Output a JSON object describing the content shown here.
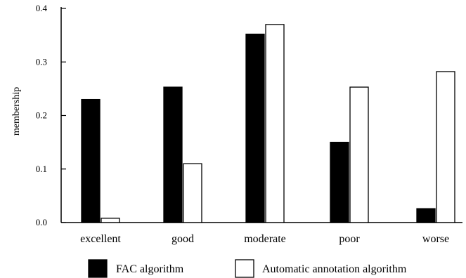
{
  "chart_data": {
    "type": "bar",
    "title": "",
    "xlabel": "",
    "ylabel": "membership",
    "ylim": [
      0,
      0.4
    ],
    "yticks": [
      "0.0",
      "0.1",
      "0.2",
      "0.3",
      "0.4"
    ],
    "categories": [
      "excellent",
      "good",
      "moderate",
      "poor",
      "worse"
    ],
    "series": [
      {
        "name": "FAC algorithm",
        "color": "#000000",
        "values": [
          0.23,
          0.253,
          0.352,
          0.15,
          0.026
        ]
      },
      {
        "name": "Automatic annotation algorithm",
        "color": "#ffffff",
        "values": [
          0.008,
          0.11,
          0.37,
          0.253,
          0.282
        ]
      }
    ],
    "grid": false,
    "legend": "bottom"
  }
}
